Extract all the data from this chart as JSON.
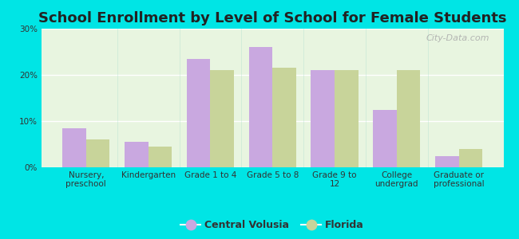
{
  "title": "School Enrollment by Level of School for Female Students",
  "categories": [
    "Nursery,\npreschool",
    "Kindergarten",
    "Grade 1 to 4",
    "Grade 5 to 8",
    "Grade 9 to\n12",
    "College\nundergrad",
    "Graduate or\nprofessional"
  ],
  "central_volusia": [
    8.5,
    5.5,
    23.5,
    26.0,
    21.0,
    12.5,
    2.5
  ],
  "florida": [
    6.0,
    4.5,
    21.0,
    21.5,
    21.0,
    21.0,
    4.0
  ],
  "color_cv": "#c9a8e0",
  "color_fl": "#c8d49a",
  "ylim": [
    0,
    30
  ],
  "yticks": [
    0,
    10,
    20,
    30
  ],
  "ytick_labels": [
    "0%",
    "10%",
    "20%",
    "30%"
  ],
  "legend_cv": "Central Volusia",
  "legend_fl": "Florida",
  "background_color": "#00e5e5",
  "plot_bg": "#edf5e0",
  "bar_width": 0.38,
  "title_fontsize": 13,
  "tick_fontsize": 7.5,
  "legend_fontsize": 9,
  "watermark_text": "City-Data.com"
}
